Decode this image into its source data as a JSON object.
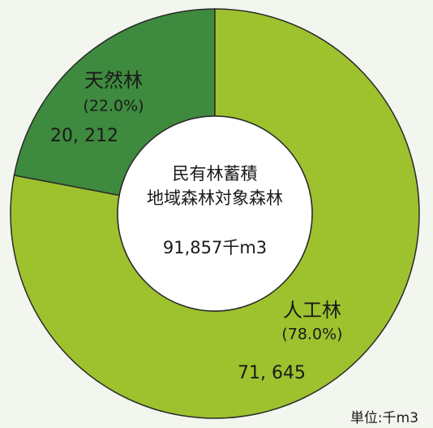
{
  "chart_data": {
    "type": "donut",
    "center_lines": [
      "民有林蓄積",
      "地域森林対象森林"
    ],
    "center_total": "91,857千m3",
    "unit": "単位:千m3",
    "categories": [
      "天然林",
      "人工林"
    ],
    "values": [
      20212,
      71645
    ],
    "value_labels": [
      "20, 212",
      "71, 645"
    ],
    "percent_labels": [
      "(22.0%)",
      "(78.0%)"
    ],
    "colors": [
      "#3e8a3e",
      "#9dc22e"
    ]
  }
}
